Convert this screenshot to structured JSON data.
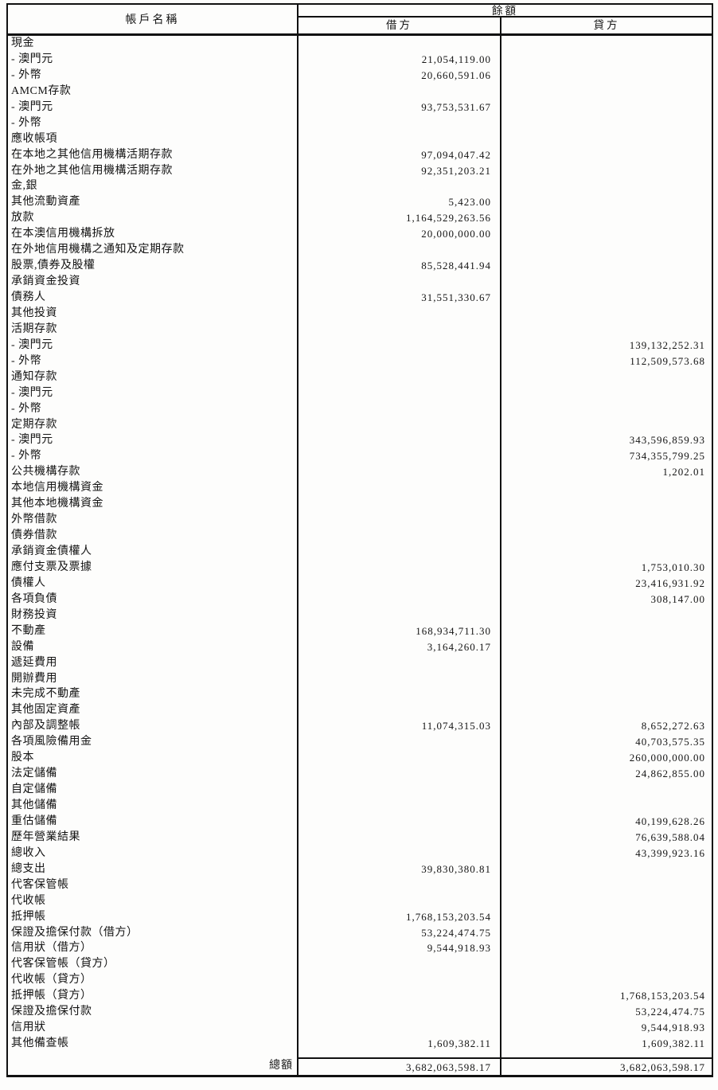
{
  "colors": {
    "border": "#111111",
    "text": "#141414",
    "background": "#fdfdfc"
  },
  "table": {
    "header": {
      "account_name": "帳戶名稱",
      "balance": "餘額",
      "debit": "借方",
      "credit": "貸方"
    },
    "rows": [
      {
        "name": "現金",
        "debit": "",
        "credit": ""
      },
      {
        "name": "- 澳門元",
        "debit": "21,054,119.00",
        "credit": ""
      },
      {
        "name": "- 外幣",
        "debit": "20,660,591.06",
        "credit": ""
      },
      {
        "name": "AMCM存款",
        "debit": "",
        "credit": ""
      },
      {
        "name": "- 澳門元",
        "debit": "93,753,531.67",
        "credit": ""
      },
      {
        "name": "- 外幣",
        "debit": "",
        "credit": ""
      },
      {
        "name": "應收帳項",
        "debit": "",
        "credit": ""
      },
      {
        "name": "在本地之其他信用機構活期存款",
        "debit": "97,094,047.42",
        "credit": ""
      },
      {
        "name": "在外地之其他信用機構活期存款",
        "debit": "92,351,203.21",
        "credit": ""
      },
      {
        "name": "金,銀",
        "debit": "",
        "credit": ""
      },
      {
        "name": "其他流動資產",
        "debit": "5,423.00",
        "credit": ""
      },
      {
        "name": "放款",
        "debit": "1,164,529,263.56",
        "credit": ""
      },
      {
        "name": "在本澳信用機構拆放",
        "debit": "20,000,000.00",
        "credit": ""
      },
      {
        "name": "在外地信用機構之通知及定期存款",
        "debit": "",
        "credit": ""
      },
      {
        "name": "股票,債券及股權",
        "debit": "85,528,441.94",
        "credit": ""
      },
      {
        "name": "承銷資金投資",
        "debit": "",
        "credit": ""
      },
      {
        "name": "債務人",
        "debit": "31,551,330.67",
        "credit": ""
      },
      {
        "name": "其他投資",
        "debit": "",
        "credit": ""
      },
      {
        "name": "活期存款",
        "debit": "",
        "credit": ""
      },
      {
        "name": "- 澳門元",
        "debit": "",
        "credit": "139,132,252.31"
      },
      {
        "name": "- 外幣",
        "debit": "",
        "credit": "112,509,573.68"
      },
      {
        "name": "通知存款",
        "debit": "",
        "credit": ""
      },
      {
        "name": "- 澳門元",
        "debit": "",
        "credit": ""
      },
      {
        "name": "- 外幣",
        "debit": "",
        "credit": ""
      },
      {
        "name": "定期存款",
        "debit": "",
        "credit": ""
      },
      {
        "name": "- 澳門元",
        "debit": "",
        "credit": "343,596,859.93"
      },
      {
        "name": "- 外幣",
        "debit": "",
        "credit": "734,355,799.25"
      },
      {
        "name": "公共機構存款",
        "debit": "",
        "credit": "1,202.01"
      },
      {
        "name": "本地信用機構資金",
        "debit": "",
        "credit": ""
      },
      {
        "name": "其他本地機構資金",
        "debit": "",
        "credit": ""
      },
      {
        "name": "外幣借款",
        "debit": "",
        "credit": ""
      },
      {
        "name": "債券借款",
        "debit": "",
        "credit": ""
      },
      {
        "name": "承銷資金債權人",
        "debit": "",
        "credit": ""
      },
      {
        "name": "應付支票及票據",
        "debit": "",
        "credit": "1,753,010.30"
      },
      {
        "name": "債權人",
        "debit": "",
        "credit": "23,416,931.92"
      },
      {
        "name": "各項負債",
        "debit": "",
        "credit": "308,147.00"
      },
      {
        "name": "財務投資",
        "debit": "",
        "credit": ""
      },
      {
        "name": "不動產",
        "debit": "168,934,711.30",
        "credit": ""
      },
      {
        "name": "設備",
        "debit": "3,164,260.17",
        "credit": ""
      },
      {
        "name": "遞延費用",
        "debit": "",
        "credit": ""
      },
      {
        "name": "開辦費用",
        "debit": "",
        "credit": ""
      },
      {
        "name": "未完成不動產",
        "debit": "",
        "credit": ""
      },
      {
        "name": "其他固定資產",
        "debit": "",
        "credit": ""
      },
      {
        "name": "內部及調整帳",
        "debit": "11,074,315.03",
        "credit": "8,652,272.63"
      },
      {
        "name": "各項風險備用金",
        "debit": "",
        "credit": "40,703,575.35"
      },
      {
        "name": "股本",
        "debit": "",
        "credit": "260,000,000.00"
      },
      {
        "name": "法定儲備",
        "debit": "",
        "credit": "24,862,855.00"
      },
      {
        "name": "自定儲備",
        "debit": "",
        "credit": ""
      },
      {
        "name": "其他儲備",
        "debit": "",
        "credit": ""
      },
      {
        "name": "重估儲備",
        "debit": "",
        "credit": "40,199,628.26"
      },
      {
        "name": "歷年營業結果",
        "debit": "",
        "credit": "76,639,588.04"
      },
      {
        "name": "總收入",
        "debit": "",
        "credit": "43,399,923.16"
      },
      {
        "name": "總支出",
        "debit": "39,830,380.81",
        "credit": ""
      },
      {
        "name": "代客保管帳",
        "debit": "",
        "credit": ""
      },
      {
        "name": "代收帳",
        "debit": "",
        "credit": ""
      },
      {
        "name": "抵押帳",
        "debit": "1,768,153,203.54",
        "credit": ""
      },
      {
        "name": "保證及擔保付款（借方）",
        "debit": "53,224,474.75",
        "credit": ""
      },
      {
        "name": "信用狀（借方）",
        "debit": "9,544,918.93",
        "credit": ""
      },
      {
        "name": "代客保管帳（貸方）",
        "debit": "",
        "credit": ""
      },
      {
        "name": "代收帳（貸方）",
        "debit": "",
        "credit": ""
      },
      {
        "name": "抵押帳（貸方）",
        "debit": "",
        "credit": "1,768,153,203.54"
      },
      {
        "name": "保證及擔保付款",
        "debit": "",
        "credit": "53,224,474.75"
      },
      {
        "name": "信用狀",
        "debit": "",
        "credit": "9,544,918.93"
      },
      {
        "name": "其他備查帳",
        "debit": "1,609,382.11",
        "credit": "1,609,382.11"
      }
    ],
    "footer": {
      "label": "總額",
      "debit": "3,682,063,598.17",
      "credit": "3,682,063,598.17"
    }
  }
}
